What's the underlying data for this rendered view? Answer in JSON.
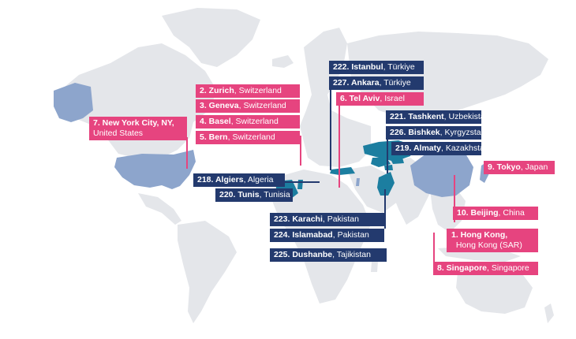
{
  "colors": {
    "land": "#e4e6ea",
    "highlight_light": "#8da5cc",
    "highlight_dark": "#1c7ea0",
    "pink": "#e6447f",
    "navy": "#233a6e"
  },
  "cities": [
    {
      "id": "zurich",
      "rank": "2. Zurich",
      "country": "Switzerland",
      "style": "pink"
    },
    {
      "id": "geneva",
      "rank": "3. Geneva",
      "country": "Switzerland",
      "style": "pink"
    },
    {
      "id": "basel",
      "rank": "4. Basel",
      "country": "Switzerland",
      "style": "pink"
    },
    {
      "id": "bern",
      "rank": "5. Bern",
      "country": "Switzerland",
      "style": "pink"
    },
    {
      "id": "nyc",
      "rank": "7. New York City, NY,",
      "country": "United States",
      "style": "pink"
    },
    {
      "id": "istanbul",
      "rank": "222. Istanbul",
      "country": "Türkiye",
      "style": "navy"
    },
    {
      "id": "ankara",
      "rank": "227. Ankara",
      "country": "Türkiye",
      "style": "navy"
    },
    {
      "id": "telaviv",
      "rank": "6. Tel Aviv",
      "country": "Israel",
      "style": "pink"
    },
    {
      "id": "tashkent",
      "rank": "221. Tashkent",
      "country": "Uzbekistan",
      "style": "navy"
    },
    {
      "id": "bishkek",
      "rank": "226. Bishkek",
      "country": "Kyrgyzstan",
      "style": "navy"
    },
    {
      "id": "almaty",
      "rank": "219. Almaty",
      "country": "Kazakhstan",
      "style": "navy"
    },
    {
      "id": "algiers",
      "rank": "218. Algiers",
      "country": "Algeria",
      "style": "navy"
    },
    {
      "id": "tunis",
      "rank": "220. Tunis",
      "country": "Tunisia",
      "style": "navy"
    },
    {
      "id": "tokyo",
      "rank": "9. Tokyo",
      "country": "Japan",
      "style": "pink"
    },
    {
      "id": "beijing",
      "rank": "10. Beijing",
      "country": "China",
      "style": "pink"
    },
    {
      "id": "karachi",
      "rank": "223. Karachi",
      "country": "Pakistan",
      "style": "navy"
    },
    {
      "id": "islamabad",
      "rank": "224. Islamabad",
      "country": "Pakistan",
      "style": "navy"
    },
    {
      "id": "hongkong",
      "rank": "1. Hong Kong,",
      "country": "Hong Kong (SAR)",
      "style": "pink"
    },
    {
      "id": "dushanbe",
      "rank": "225. Dushanbe",
      "country": "Tajikistan",
      "style": "navy"
    },
    {
      "id": "singapore",
      "rank": "8. Singapore",
      "country": "Singapore",
      "style": "pink"
    }
  ]
}
